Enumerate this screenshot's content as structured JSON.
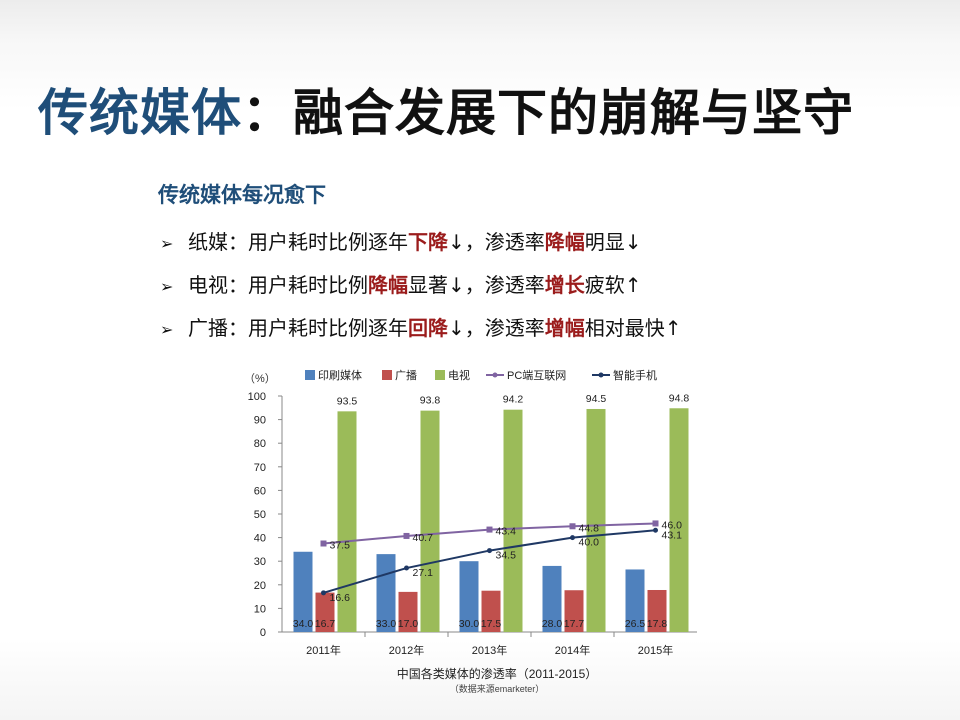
{
  "slide": {
    "title_part1": "传统媒体",
    "title_part2": "：融合发展下的崩解与坚守",
    "subtitle": "传统媒体每况愈下",
    "bullet_marker": "➢",
    "bullets": [
      {
        "a": "纸媒：用户耗时比例逐年",
        "b": "下降",
        "c": "↓，渗透率",
        "d": "降幅",
        "e": "明显↓"
      },
      {
        "a": "电视：用户耗时比例",
        "b": "降幅",
        "c": "显著↓，渗透率",
        "d": "增长",
        "e": "疲软↑"
      },
      {
        "a": "广播：用户耗时比例逐年",
        "b": "回降",
        "c": "↓，渗透率",
        "d": "增幅",
        "e": "相对最快↑"
      }
    ]
  },
  "colors": {
    "print": "#4f81bd",
    "radio": "#c0504d",
    "tv": "#9bbb59",
    "pc": "#8064a2",
    "mobile": "#1f3864"
  },
  "chart_data": {
    "type": "bar",
    "unit_label": "（%）",
    "categories": [
      "2011年",
      "2012年",
      "2013年",
      "2014年",
      "2015年"
    ],
    "ylim": [
      0,
      100
    ],
    "yticks": [
      "0",
      "10",
      "20",
      "30",
      "40",
      "50",
      "60",
      "70",
      "80",
      "90",
      "100"
    ],
    "legend_position": "top",
    "series": [
      {
        "name": "印刷媒体",
        "kind": "bar",
        "color": "#4f81bd",
        "values": [
          34.0,
          33.0,
          30.0,
          28.0,
          26.5
        ],
        "labels": [
          "34.0",
          "33.0",
          "30.0",
          "28.0",
          "26.5"
        ]
      },
      {
        "name": "广播",
        "kind": "bar",
        "color": "#c0504d",
        "values": [
          16.7,
          17.0,
          17.5,
          17.7,
          17.8
        ],
        "labels": [
          "16.7",
          "17.0",
          "17.5",
          "17.7",
          "17.8"
        ]
      },
      {
        "name": "电视",
        "kind": "bar",
        "color": "#9bbb59",
        "values": [
          93.5,
          93.8,
          94.2,
          94.5,
          94.8
        ],
        "labels": [
          "93.5",
          "93.8",
          "94.2",
          "94.5",
          "94.8"
        ]
      },
      {
        "name": "PC端互联网",
        "kind": "line",
        "color": "#8064a2",
        "values": [
          37.5,
          40.7,
          43.4,
          44.8,
          46.0
        ],
        "labels": [
          "37.5",
          "40.7",
          "43.4",
          "44.8",
          "46.0"
        ]
      },
      {
        "name": "智能手机",
        "kind": "line",
        "color": "#1f3864",
        "values": [
          16.6,
          27.1,
          34.5,
          40.0,
          43.1
        ],
        "labels": [
          "16.6",
          "27.1",
          "34.5",
          "40.0",
          "43.1"
        ]
      }
    ],
    "caption": "中国各类媒体的渗透率（2011-2015）",
    "source": "（数据来源emarketer）"
  }
}
